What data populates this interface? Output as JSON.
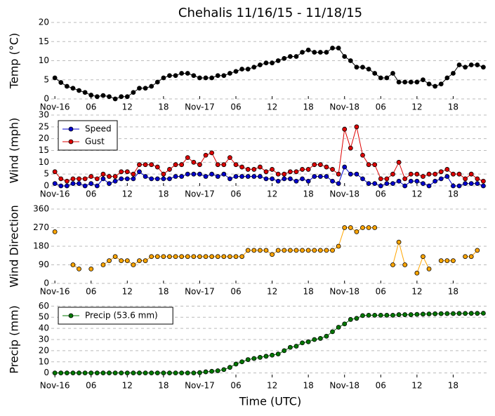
{
  "chart_data": [
    {
      "type": "line",
      "title": "Chehalis 11/16/15 - 11/18/15",
      "ylabel": "Temp ($^\\circ$C)",
      "x": [
        0,
        1,
        2,
        3,
        4,
        5,
        6,
        7,
        8,
        9,
        10,
        11,
        12,
        13,
        14,
        15,
        16,
        17,
        18,
        19,
        20,
        21,
        22,
        23,
        24,
        25,
        26,
        27,
        28,
        29,
        30,
        31,
        32,
        33,
        34,
        35,
        36,
        37,
        38,
        39,
        40,
        41,
        42,
        43,
        44,
        45,
        46,
        47,
        48,
        49,
        50,
        51,
        52,
        53,
        54,
        55,
        56,
        57,
        58,
        59,
        60,
        61,
        62,
        63,
        64,
        65,
        66,
        67,
        68,
        69,
        70,
        71
      ],
      "xlim": [
        -0.6,
        72
      ],
      "xticks": [
        {
          "value": 0,
          "label": "Nov-16"
        },
        {
          "value": 6,
          "label": "06"
        },
        {
          "value": 12,
          "label": "12"
        },
        {
          "value": 18,
          "label": "18"
        },
        {
          "value": 24,
          "label": "Nov-17"
        },
        {
          "value": 30,
          "label": "06"
        },
        {
          "value": 36,
          "label": "12"
        },
        {
          "value": 42,
          "label": "18"
        },
        {
          "value": 48,
          "label": "Nov-18"
        },
        {
          "value": 54,
          "label": "06"
        },
        {
          "value": 60,
          "label": "12"
        },
        {
          "value": 66,
          "label": "18"
        }
      ],
      "ylim": [
        0,
        20
      ],
      "yticks": [
        0,
        5,
        10,
        15,
        20
      ],
      "grid": "y",
      "series": [
        {
          "color": "#000000",
          "values": [
            5.5,
            4.3,
            3.3,
            2.8,
            2.2,
            1.7,
            1.0,
            0.6,
            0.9,
            0.6,
            0,
            0.6,
            0.6,
            1.7,
            2.8,
            2.8,
            3.3,
            4.4,
            5.5,
            6.1,
            6.1,
            6.7,
            6.7,
            6.1,
            5.5,
            5.5,
            5.5,
            6.1,
            6.1,
            6.7,
            7.2,
            7.8,
            7.8,
            8.3,
            8.9,
            9.4,
            9.4,
            10.0,
            10.6,
            11.1,
            11.1,
            12.2,
            12.8,
            12.2,
            12.2,
            12.2,
            13.3,
            13.3,
            11.1,
            10.0,
            8.3,
            8.3,
            7.8,
            6.7,
            5.5,
            5.5,
            6.7,
            4.4,
            4.4,
            4.4,
            4.4,
            5.0,
            3.9,
            3.3,
            3.9,
            5.5,
            6.7,
            8.9,
            8.3,
            8.9,
            8.9,
            8.3
          ]
        }
      ]
    },
    {
      "type": "line",
      "ylabel": "Wind (mph)",
      "x": [
        0,
        1,
        2,
        3,
        4,
        5,
        6,
        7,
        8,
        9,
        10,
        11,
        12,
        13,
        14,
        15,
        16,
        17,
        18,
        19,
        20,
        21,
        22,
        23,
        24,
        25,
        26,
        27,
        28,
        29,
        30,
        31,
        32,
        33,
        34,
        35,
        36,
        37,
        38,
        39,
        40,
        41,
        42,
        43,
        44,
        45,
        46,
        47,
        48,
        49,
        50,
        51,
        52,
        53,
        54,
        55,
        56,
        57,
        58,
        59,
        60,
        61,
        62,
        63,
        64,
        65,
        66,
        67,
        68,
        69,
        70,
        71
      ],
      "xlim": [
        -0.6,
        72
      ],
      "xticks": [
        {
          "value": 0,
          "label": "Nov-16"
        },
        {
          "value": 6,
          "label": "06"
        },
        {
          "value": 12,
          "label": "12"
        },
        {
          "value": 18,
          "label": "18"
        },
        {
          "value": 24,
          "label": "Nov-17"
        },
        {
          "value": 30,
          "label": "06"
        },
        {
          "value": 36,
          "label": "12"
        },
        {
          "value": 42,
          "label": "18"
        },
        {
          "value": 48,
          "label": "Nov-18"
        },
        {
          "value": 54,
          "label": "06"
        },
        {
          "value": 60,
          "label": "12"
        },
        {
          "value": 66,
          "label": "18"
        }
      ],
      "ylim": [
        0,
        30
      ],
      "yticks": [
        0,
        5,
        10,
        15,
        20,
        25,
        30
      ],
      "grid": "y",
      "legend": "upper left",
      "series": [
        {
          "name": "Speed",
          "color": "#0000cc",
          "values": [
            1,
            0,
            0,
            1,
            1,
            0,
            1,
            0,
            3,
            1,
            2,
            3,
            3,
            3,
            6,
            4,
            3,
            3,
            3,
            3,
            4,
            4,
            5,
            5,
            5,
            4,
            5,
            4,
            5,
            3,
            4,
            4,
            4,
            4,
            4,
            3,
            3,
            2,
            3,
            3,
            2,
            3,
            2,
            4,
            4,
            4,
            2,
            1,
            8,
            5,
            5,
            3,
            1,
            1,
            0,
            1,
            1,
            2,
            0,
            2,
            2,
            1,
            0,
            2,
            3,
            4,
            0,
            0,
            1,
            1,
            1,
            0
          ]
        },
        {
          "name": "Gust",
          "color": "#dd0000",
          "values": [
            6,
            3,
            2,
            3,
            3,
            3,
            4,
            3,
            5,
            4,
            4,
            6,
            6,
            5,
            9,
            9,
            9,
            8,
            5,
            7,
            9,
            9,
            12,
            10,
            9,
            13,
            14,
            9,
            9,
            12,
            9,
            8,
            7,
            7,
            8,
            6,
            7,
            5,
            5,
            6,
            6,
            7,
            7,
            9,
            9,
            8,
            7,
            5,
            24,
            16,
            25,
            13,
            9,
            9,
            3,
            3,
            5,
            10,
            3,
            5,
            5,
            4,
            5,
            5,
            6,
            7,
            5,
            5,
            3,
            5,
            3,
            2
          ]
        }
      ]
    },
    {
      "type": "line",
      "ylabel": "Wind Direction",
      "x": [
        0,
        1,
        2,
        3,
        4,
        5,
        6,
        7,
        8,
        9,
        10,
        11,
        12,
        13,
        14,
        15,
        16,
        17,
        18,
        19,
        20,
        21,
        22,
        23,
        24,
        25,
        26,
        27,
        28,
        29,
        30,
        31,
        32,
        33,
        34,
        35,
        36,
        37,
        38,
        39,
        40,
        41,
        42,
        43,
        44,
        45,
        46,
        47,
        48,
        49,
        50,
        51,
        52,
        53,
        54,
        55,
        56,
        57,
        58,
        59,
        60,
        61,
        62,
        63,
        64,
        65,
        66,
        67,
        68,
        69,
        70,
        71
      ],
      "xlim": [
        -0.6,
        72
      ],
      "xticks": [
        {
          "value": 0,
          "label": "Nov-16"
        },
        {
          "value": 6,
          "label": "06"
        },
        {
          "value": 12,
          "label": "12"
        },
        {
          "value": 18,
          "label": "18"
        },
        {
          "value": 24,
          "label": "Nov-17"
        },
        {
          "value": 30,
          "label": "06"
        },
        {
          "value": 36,
          "label": "12"
        },
        {
          "value": 42,
          "label": "18"
        },
        {
          "value": 48,
          "label": "Nov-18"
        },
        {
          "value": 54,
          "label": "06"
        },
        {
          "value": 60,
          "label": "12"
        },
        {
          "value": 66,
          "label": "18"
        }
      ],
      "ylim": [
        0,
        360
      ],
      "yticks": [
        0,
        90,
        180,
        270,
        360
      ],
      "grid": "y",
      "series": [
        {
          "color": "#ffa500",
          "values": [
            250,
            null,
            null,
            90,
            70,
            null,
            70,
            null,
            90,
            110,
            130,
            110,
            110,
            90,
            110,
            110,
            130,
            130,
            130,
            130,
            130,
            130,
            130,
            130,
            130,
            130,
            130,
            130,
            130,
            130,
            130,
            130,
            160,
            160,
            160,
            160,
            140,
            160,
            160,
            160,
            160,
            160,
            160,
            160,
            160,
            160,
            160,
            180,
            270,
            270,
            250,
            270,
            270,
            270,
            null,
            null,
            90,
            200,
            90,
            null,
            50,
            130,
            70,
            null,
            110,
            110,
            110,
            null,
            130,
            130,
            160,
            null
          ]
        }
      ]
    },
    {
      "type": "line",
      "ylabel": "Precip (mm)",
      "xlabel": "Time (UTC)",
      "x": [
        0,
        1,
        2,
        3,
        4,
        5,
        6,
        7,
        8,
        9,
        10,
        11,
        12,
        13,
        14,
        15,
        16,
        17,
        18,
        19,
        20,
        21,
        22,
        23,
        24,
        25,
        26,
        27,
        28,
        29,
        30,
        31,
        32,
        33,
        34,
        35,
        36,
        37,
        38,
        39,
        40,
        41,
        42,
        43,
        44,
        45,
        46,
        47,
        48,
        49,
        50,
        51,
        52,
        53,
        54,
        55,
        56,
        57,
        58,
        59,
        60,
        61,
        62,
        63,
        64,
        65,
        66,
        67,
        68,
        69,
        70,
        71
      ],
      "xlim": [
        -0.6,
        72
      ],
      "xticks": [
        {
          "value": 0,
          "label": "Nov-16"
        },
        {
          "value": 6,
          "label": "06"
        },
        {
          "value": 12,
          "label": "12"
        },
        {
          "value": 18,
          "label": "18"
        },
        {
          "value": 24,
          "label": "Nov-17"
        },
        {
          "value": 30,
          "label": "06"
        },
        {
          "value": 36,
          "label": "12"
        },
        {
          "value": 42,
          "label": "18"
        },
        {
          "value": 48,
          "label": "Nov-18"
        },
        {
          "value": 54,
          "label": "06"
        },
        {
          "value": 60,
          "label": "12"
        },
        {
          "value": 66,
          "label": "18"
        }
      ],
      "ylim": [
        -4,
        64
      ],
      "yticks": [
        0,
        10,
        20,
        30,
        40,
        50,
        60
      ],
      "grid": "y",
      "legend": "upper left",
      "series": [
        {
          "name": "Precip (53.6 mm)",
          "color": "#007700",
          "values": [
            0,
            0,
            0,
            0,
            0,
            0,
            0,
            0,
            0,
            0,
            0,
            0,
            0,
            0,
            0,
            0,
            0,
            0,
            0,
            0,
            0,
            0,
            0,
            0,
            0.3,
            1,
            1.5,
            2,
            3,
            5,
            8,
            10,
            12,
            13,
            14,
            15,
            16,
            17,
            20,
            23,
            24,
            27,
            28,
            30,
            31,
            33,
            37,
            41,
            44,
            48,
            49,
            51.5,
            51.8,
            51.8,
            51.8,
            51.8,
            51.8,
            52.3,
            52.3,
            52.3,
            52.6,
            52.8,
            53,
            53.1,
            53.2,
            53.3,
            53.3,
            53.4,
            53.4,
            53.5,
            53.5,
            53.6
          ]
        }
      ]
    }
  ]
}
